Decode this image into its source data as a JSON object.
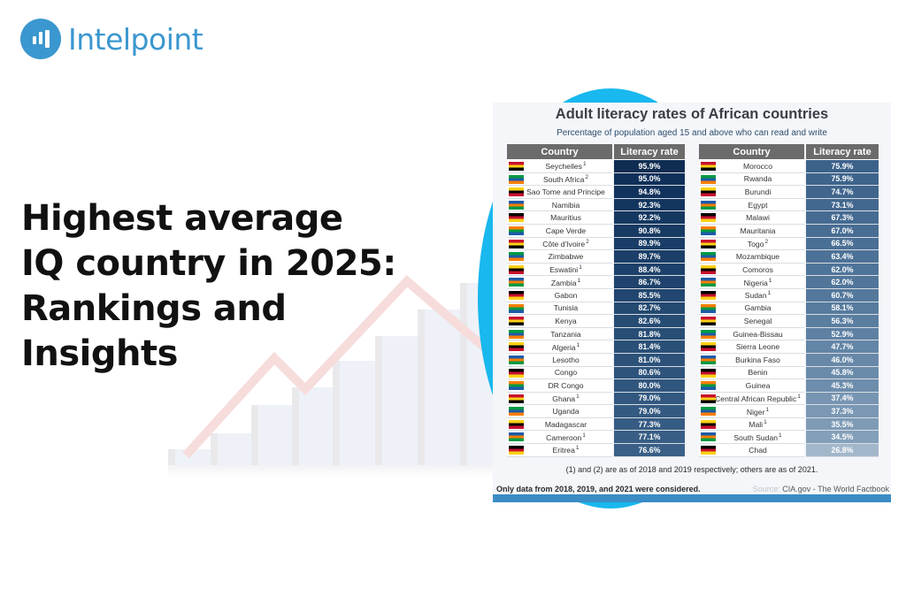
{
  "brand": {
    "name": "Intelpoint",
    "logo_icon": "bar-chart-circle-icon",
    "color": "#3b97cf"
  },
  "headline": {
    "lines": [
      "Highest average",
      "IQ country in 2025:",
      "Rankings and",
      "Insights"
    ]
  },
  "infographic": {
    "title": "Adult literacy rates of African countries",
    "subtitle": "Percentage of population aged 15 and above who can read and write",
    "headers": {
      "country": "Country",
      "rate": "Literacy rate"
    },
    "left_table": [
      {
        "country": "Seychelles",
        "note": "1",
        "rate": "95.9%",
        "color": "#0f2d52"
      },
      {
        "country": "South Africa",
        "note": "2",
        "rate": "95.0%",
        "color": "#10305a"
      },
      {
        "country": "Sao Tome and Principe",
        "note": "",
        "rate": "94.8%",
        "color": "#11325c"
      },
      {
        "country": "Namibia",
        "note": "",
        "rate": "92.3%",
        "color": "#13365f"
      },
      {
        "country": "Mauritius",
        "note": "",
        "rate": "92.2%",
        "color": "#153861"
      },
      {
        "country": "Cape Verde",
        "note": "",
        "rate": "90.8%",
        "color": "#173a63"
      },
      {
        "country": "Côte d'Ivoire",
        "note": "2",
        "rate": "89.9%",
        "color": "#193d66"
      },
      {
        "country": "Zimbabwe",
        "note": "",
        "rate": "89.7%",
        "color": "#1b3f68"
      },
      {
        "country": "Eswatini",
        "note": "1",
        "rate": "88.4%",
        "color": "#1d416a"
      },
      {
        "country": "Zambia",
        "note": "1",
        "rate": "86.7%",
        "color": "#1f436c"
      },
      {
        "country": "Gabon",
        "note": "",
        "rate": "85.5%",
        "color": "#21466f"
      },
      {
        "country": "Tunisia",
        "note": "",
        "rate": "82.7%",
        "color": "#244a72"
      },
      {
        "country": "Kenya",
        "note": "",
        "rate": "82.6%",
        "color": "#264c74"
      },
      {
        "country": "Tanzania",
        "note": "",
        "rate": "81.8%",
        "color": "#284e76"
      },
      {
        "country": "Algeria",
        "note": "1",
        "rate": "81.4%",
        "color": "#2a5078"
      },
      {
        "country": "Lesotho",
        "note": "",
        "rate": "81.0%",
        "color": "#2c527a"
      },
      {
        "country": "Congo",
        "note": "",
        "rate": "80.6%",
        "color": "#2e547c"
      },
      {
        "country": "DR Congo",
        "note": "",
        "rate": "80.0%",
        "color": "#30567e"
      },
      {
        "country": "Ghana",
        "note": "1",
        "rate": "79.0%",
        "color": "#325880"
      },
      {
        "country": "Uganda",
        "note": "",
        "rate": "79.0%",
        "color": "#345a82"
      },
      {
        "country": "Madagascar",
        "note": "",
        "rate": "77.3%",
        "color": "#365c84"
      },
      {
        "country": "Cameroon",
        "note": "1",
        "rate": "77.1%",
        "color": "#385e86"
      },
      {
        "country": "Eritrea",
        "note": "1",
        "rate": "76.6%",
        "color": "#3a6088"
      }
    ],
    "right_table": [
      {
        "country": "Morocco",
        "note": "",
        "rate": "75.9%",
        "color": "#3c628a"
      },
      {
        "country": "Rwanda",
        "note": "",
        "rate": "75.9%",
        "color": "#3e648c"
      },
      {
        "country": "Burundi",
        "note": "",
        "rate": "74.7%",
        "color": "#40668d"
      },
      {
        "country": "Egypt",
        "note": "",
        "rate": "73.1%",
        "color": "#43688f"
      },
      {
        "country": "Malawi",
        "note": "",
        "rate": "67.3%",
        "color": "#466b92"
      },
      {
        "country": "Mauritania",
        "note": "",
        "rate": "67.0%",
        "color": "#486d93"
      },
      {
        "country": "Togo",
        "note": "2",
        "rate": "66.5%",
        "color": "#4a6f95"
      },
      {
        "country": "Mozambique",
        "note": "",
        "rate": "63.4%",
        "color": "#4d7297"
      },
      {
        "country": "Comoros",
        "note": "",
        "rate": "62.0%",
        "color": "#4f7499"
      },
      {
        "country": "Nigeria",
        "note": "1",
        "rate": "62.0%",
        "color": "#51769a"
      },
      {
        "country": "Sudan",
        "note": "1",
        "rate": "60.7%",
        "color": "#54789c"
      },
      {
        "country": "Gambia",
        "note": "",
        "rate": "58.1%",
        "color": "#577b9e"
      },
      {
        "country": "Senegal",
        "note": "",
        "rate": "56.3%",
        "color": "#5a7ea0"
      },
      {
        "country": "Guinea-Bissau",
        "note": "",
        "rate": "52.9%",
        "color": "#5e81a3"
      },
      {
        "country": "Sierra Leone",
        "note": "",
        "rate": "47.7%",
        "color": "#6385a6"
      },
      {
        "country": "Burkina Faso",
        "note": "",
        "rate": "46.0%",
        "color": "#6788a8"
      },
      {
        "country": "Benin",
        "note": "",
        "rate": "45.8%",
        "color": "#6a8baa"
      },
      {
        "country": "Guinea",
        "note": "",
        "rate": "45.3%",
        "color": "#6d8dac"
      },
      {
        "country": "Central African Republic",
        "note": "1",
        "rate": "37.4%",
        "color": "#7795b2"
      },
      {
        "country": "Niger",
        "note": "1",
        "rate": "37.3%",
        "color": "#7a97b4"
      },
      {
        "country": "Mali",
        "note": "1",
        "rate": "35.5%",
        "color": "#7e9bb6"
      },
      {
        "country": "South Sudan",
        "note": "1",
        "rate": "34.5%",
        "color": "#839fb9"
      },
      {
        "country": "Chad",
        "note": "",
        "rate": "26.8%",
        "color": "#a3b7cb"
      }
    ],
    "footnote": "(1) and (2) are as of 2018 and 2019 respectively; others are as of 2021.",
    "bottom_note": "Only data from 2018, 2019, and 2021 were considered.",
    "source_label": "Source:",
    "source_text": "CIA.gov - The World Factbook"
  }
}
